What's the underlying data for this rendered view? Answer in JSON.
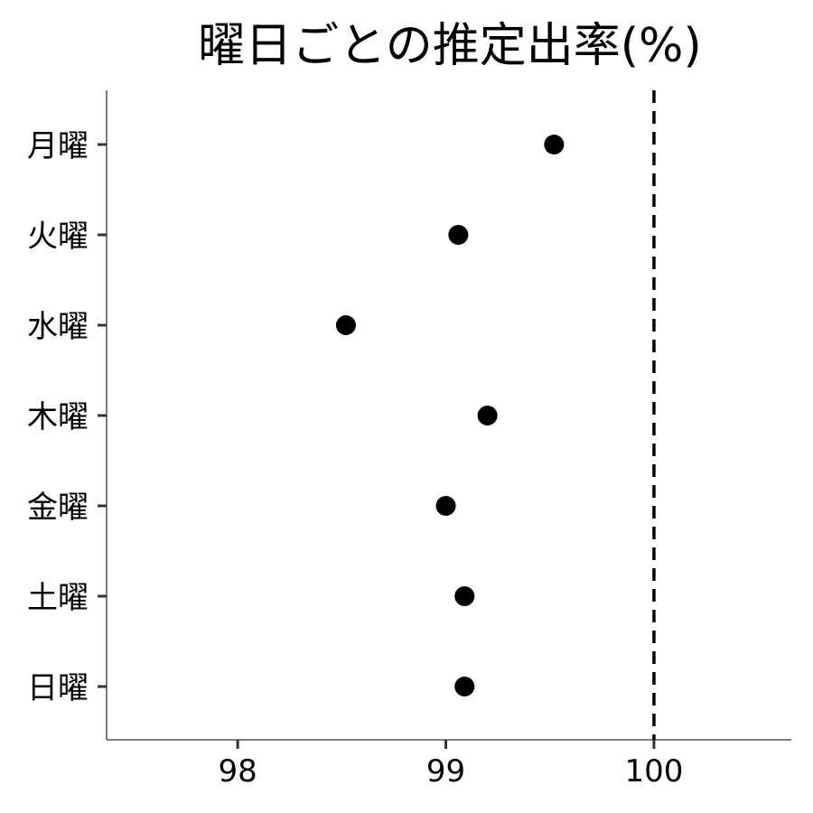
{
  "chart_data": {
    "type": "scatter",
    "title": "曜日ごとの推定出率(%)",
    "xlabel": "",
    "ylabel": "",
    "categories": [
      "月曜",
      "火曜",
      "水曜",
      "木曜",
      "金曜",
      "土曜",
      "日曜"
    ],
    "values": [
      99.52,
      99.06,
      98.52,
      99.2,
      99.0,
      99.09,
      99.09
    ],
    "xlim": [
      97.37,
      100.66
    ],
    "xticks": [
      "98",
      "99",
      "100"
    ],
    "reference_line": {
      "x": 100,
      "style": "dashed"
    },
    "grid": false,
    "colors": {
      "point": "#000000",
      "axis": "#555555",
      "reference": "#000000"
    }
  }
}
